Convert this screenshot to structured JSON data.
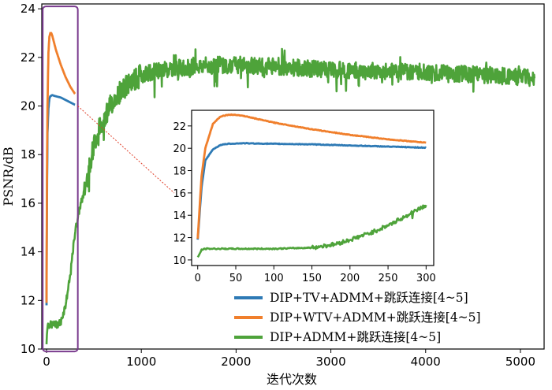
{
  "chart_data": {
    "type": "line",
    "xlabel": "迭代次数",
    "ylabel": "PSNR/dB",
    "xlim": [
      -50,
      5250
    ],
    "ylim": [
      10,
      24.2
    ],
    "xticks": [
      0,
      1000,
      2000,
      3000,
      4000,
      5000
    ],
    "yticks": [
      10,
      12,
      14,
      16,
      18,
      20,
      22,
      24
    ],
    "grid": false,
    "legend_position": "bottom-right",
    "colors": {
      "blue": "#2e7ab5",
      "orange": "#f07f2c",
      "green": "#4ea33a",
      "highlight_box": "#7a3b8e",
      "connector": "#e0402a"
    },
    "series": [
      {
        "name": "DIP+TV+ADMM+跳跃连接[4~5]",
        "color": "#2e7ab5",
        "x": [
          0,
          5,
          10,
          20,
          30,
          40,
          60,
          80,
          100,
          150,
          200,
          250,
          300
        ],
        "y": [
          11.8,
          16.5,
          18.9,
          19.9,
          20.3,
          20.4,
          20.45,
          20.42,
          20.4,
          20.35,
          20.25,
          20.15,
          20.05
        ]
      },
      {
        "name": "DIP+WTV+ADMM+跳跃连接[4~5]",
        "color": "#f07f2c",
        "x": [
          0,
          5,
          10,
          20,
          30,
          40,
          50,
          60,
          80,
          100,
          150,
          200,
          250,
          300
        ],
        "y": [
          11.9,
          17.5,
          20.0,
          22.2,
          22.85,
          23.0,
          23.0,
          22.9,
          22.6,
          22.3,
          21.7,
          21.2,
          20.8,
          20.5
        ]
      },
      {
        "name": "DIP+ADMM+跳跃连接[4~5]",
        "color": "#4ea33a",
        "x": [
          0,
          5,
          10,
          50,
          100,
          150,
          200,
          250,
          300,
          350,
          400,
          450,
          500,
          550,
          600,
          700,
          800,
          900,
          1000,
          1200,
          1500,
          1800,
          2000,
          2500,
          3000,
          3500,
          4000,
          4500,
          5000,
          5150
        ],
        "y": [
          10.2,
          10.8,
          11.0,
          11.0,
          11.0,
          11.1,
          11.8,
          13.0,
          14.8,
          15.8,
          16.5,
          17.5,
          18.4,
          19.0,
          19.5,
          20.2,
          20.7,
          21.0,
          21.3,
          21.5,
          21.6,
          21.7,
          21.7,
          21.6,
          21.5,
          21.45,
          21.4,
          21.3,
          21.2,
          21.1
        ]
      }
    ],
    "inset": {
      "xlim": [
        -8,
        310
      ],
      "ylim": [
        9.5,
        23.4
      ],
      "xticks": [
        0,
        50,
        100,
        150,
        200,
        250,
        300
      ],
      "yticks": [
        10,
        12,
        14,
        16,
        18,
        20,
        22
      ],
      "highlight_range_x": [
        0,
        300
      ],
      "highlight_range_y": [
        10,
        23.1
      ],
      "green_inset": {
        "x": [
          0,
          5,
          10,
          20,
          50,
          100,
          150,
          180,
          200,
          230,
          250,
          270,
          300
        ],
        "y": [
          10.2,
          10.9,
          11.0,
          11.0,
          11.0,
          11.0,
          11.1,
          11.4,
          11.8,
          12.5,
          13.1,
          13.8,
          14.9
        ]
      }
    }
  }
}
